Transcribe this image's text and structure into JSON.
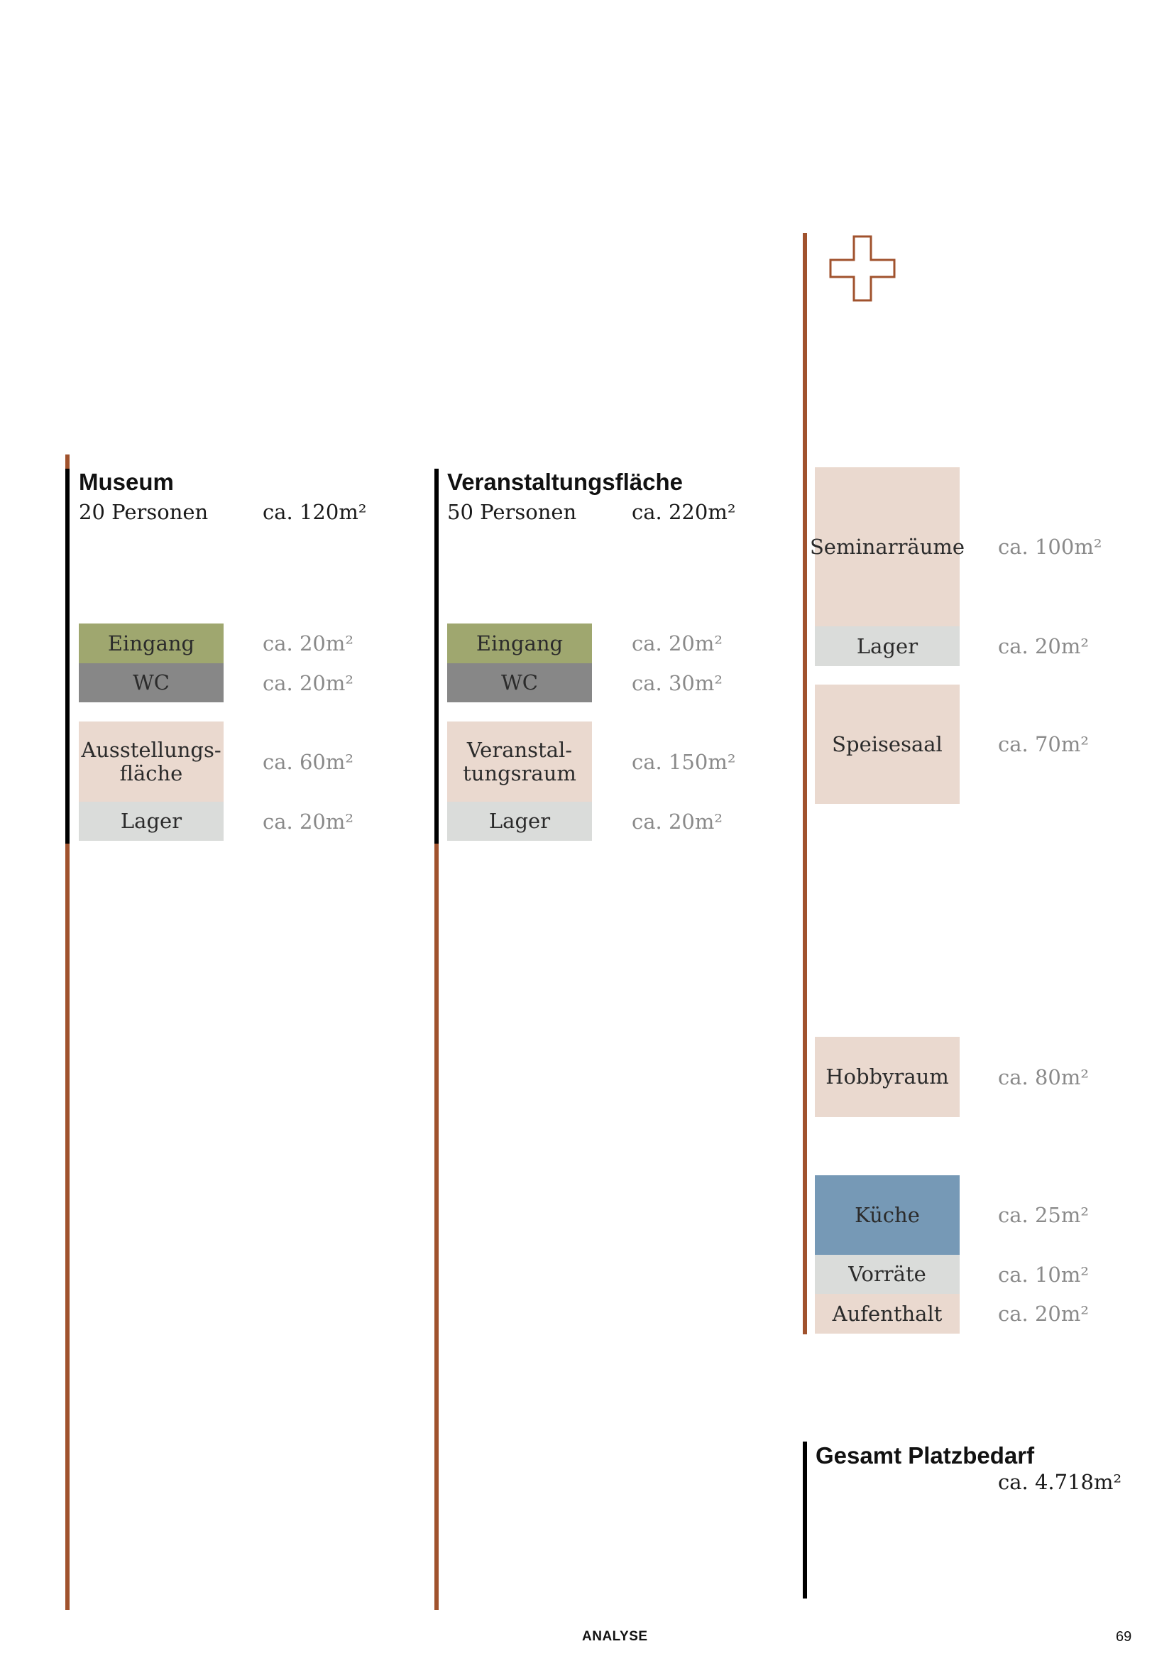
{
  "colors": {
    "accent_line": "#A0522D",
    "black_line": "#000000",
    "eingang": "#9FA76F",
    "wc": "#878787",
    "lager": "#DADCDA",
    "room_pink": "#EAD9CF",
    "kueche": "#7699B6"
  },
  "museum": {
    "title": "Museum",
    "persons": "20 Personen",
    "total": "ca. 120m²",
    "rooms": [
      {
        "label": "Eingang",
        "area": "ca. 20m²"
      },
      {
        "label": "WC",
        "area": "ca. 20m²"
      },
      {
        "label": "Ausstellungs-\nfläche",
        "area": "ca. 60m²"
      },
      {
        "label": "Lager",
        "area": "ca. 20m²"
      }
    ]
  },
  "veranstaltung": {
    "title": "Veranstaltungsfläche",
    "persons": "50 Personen",
    "total": "ca. 220m²",
    "rooms": [
      {
        "label": "Eingang",
        "area": "ca. 20m²"
      },
      {
        "label": "WC",
        "area": "ca. 30m²"
      },
      {
        "label": "Veranstal-\ntungsraum",
        "area": "ca. 150m²"
      },
      {
        "label": "Lager",
        "area": "ca. 20m²"
      }
    ]
  },
  "plus_column": {
    "icon": "plus-icon",
    "rooms": [
      {
        "label": "Seminarräume",
        "area": "ca. 100m²"
      },
      {
        "label": "Lager",
        "area": "ca. 20m²"
      },
      {
        "label": "Speisesaal",
        "area": "ca. 70m²"
      },
      {
        "label": "Hobbyraum",
        "area": "ca. 80m²"
      },
      {
        "label": "Küche",
        "area": "ca. 25m²"
      },
      {
        "label": "Vorräte",
        "area": "ca. 10m²"
      },
      {
        "label": "Aufenthalt",
        "area": "ca. 20m²"
      }
    ]
  },
  "gesamt": {
    "title": "Gesamt Platzbedarf",
    "total": "ca. 4.718m²"
  },
  "footer": {
    "section": "ANALYSE",
    "page": "69"
  }
}
